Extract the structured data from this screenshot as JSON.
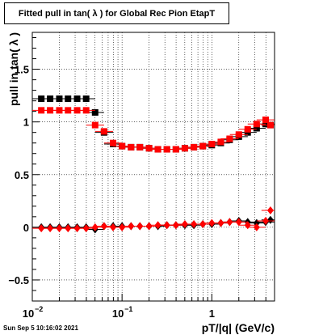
{
  "chart_data": {
    "type": "scatter",
    "title": "Fitted pull in tan( λ ) for Global Rec Pion EtapT",
    "xlabel": "pT/|q| (GeV/c)",
    "ylabel": "pull in tan( λ )",
    "xscale": "log",
    "xlim": [
      0.01,
      5.0
    ],
    "ylim": [
      -0.7,
      1.85
    ],
    "x_ticks": [
      {
        "value": 0.01,
        "label": "10",
        "exp": "−2"
      },
      {
        "value": 0.1,
        "label": "10",
        "exp": "−1"
      },
      {
        "value": 1,
        "label": "1",
        "exp": ""
      }
    ],
    "y_ticks": [
      {
        "value": -0.5,
        "label": "−0.5"
      },
      {
        "value": 0,
        "label": "0"
      },
      {
        "value": 0.5,
        "label": "0.5"
      },
      {
        "value": 1,
        "label": "1"
      },
      {
        "value": 1.5,
        "label": "1.5"
      }
    ],
    "grid": true,
    "series": [
      {
        "color": "#000000",
        "marker": "square",
        "points": [
          [
            0.0126,
            1.22
          ],
          [
            0.0158,
            1.22
          ],
          [
            0.02,
            1.22
          ],
          [
            0.025,
            1.22
          ],
          [
            0.0316,
            1.22
          ],
          [
            0.0398,
            1.22
          ],
          [
            0.0501,
            1.09
          ],
          [
            0.063,
            0.9
          ],
          [
            0.0794,
            0.79
          ],
          [
            0.1,
            0.77
          ],
          [
            0.126,
            0.76
          ],
          [
            0.158,
            0.76
          ],
          [
            0.2,
            0.75
          ],
          [
            0.251,
            0.74
          ],
          [
            0.316,
            0.74
          ],
          [
            0.398,
            0.74
          ],
          [
            0.501,
            0.75
          ],
          [
            0.631,
            0.76
          ],
          [
            0.794,
            0.77
          ],
          [
            1.0,
            0.78
          ],
          [
            1.26,
            0.8
          ],
          [
            1.58,
            0.83
          ],
          [
            2.0,
            0.86
          ],
          [
            2.51,
            0.9
          ],
          [
            3.16,
            0.94
          ],
          [
            3.98,
            0.98
          ],
          [
            4.5,
            0.97
          ]
        ]
      },
      {
        "color": "#ff0000",
        "marker": "square",
        "points": [
          [
            0.0126,
            1.11
          ],
          [
            0.0158,
            1.11
          ],
          [
            0.02,
            1.11
          ],
          [
            0.025,
            1.11
          ],
          [
            0.0316,
            1.11
          ],
          [
            0.0398,
            1.11
          ],
          [
            0.0501,
            0.97
          ],
          [
            0.063,
            0.91
          ],
          [
            0.0794,
            0.8
          ],
          [
            0.1,
            0.77
          ],
          [
            0.126,
            0.76
          ],
          [
            0.158,
            0.76
          ],
          [
            0.2,
            0.75
          ],
          [
            0.251,
            0.74
          ],
          [
            0.316,
            0.74
          ],
          [
            0.398,
            0.74
          ],
          [
            0.501,
            0.75
          ],
          [
            0.631,
            0.76
          ],
          [
            0.794,
            0.77
          ],
          [
            1.0,
            0.79
          ],
          [
            1.26,
            0.81
          ],
          [
            1.58,
            0.84
          ],
          [
            2.0,
            0.88
          ],
          [
            2.51,
            0.93
          ],
          [
            3.16,
            0.98
          ],
          [
            3.98,
            1.02
          ],
          [
            4.5,
            0.97
          ]
        ]
      },
      {
        "color": "#000000",
        "marker": "diamond",
        "points": [
          [
            0.0126,
            0.0
          ],
          [
            0.0158,
            0.0
          ],
          [
            0.02,
            0.0
          ],
          [
            0.025,
            0.0
          ],
          [
            0.0316,
            0.0
          ],
          [
            0.0398,
            0.0
          ],
          [
            0.0501,
            -0.02
          ],
          [
            0.063,
            0.01
          ],
          [
            0.0794,
            0.01
          ],
          [
            0.1,
            0.01
          ],
          [
            0.126,
            0.01
          ],
          [
            0.158,
            0.01
          ],
          [
            0.2,
            0.01
          ],
          [
            0.251,
            0.01
          ],
          [
            0.316,
            0.02
          ],
          [
            0.398,
            0.02
          ],
          [
            0.501,
            0.02
          ],
          [
            0.631,
            0.02
          ],
          [
            0.794,
            0.03
          ],
          [
            1.0,
            0.03
          ],
          [
            1.26,
            0.04
          ],
          [
            1.58,
            0.05
          ],
          [
            2.0,
            0.06
          ],
          [
            2.51,
            0.05
          ],
          [
            3.16,
            0.04
          ],
          [
            3.98,
            0.05
          ],
          [
            4.5,
            0.07
          ]
        ]
      },
      {
        "color": "#ff0000",
        "marker": "diamond",
        "points": [
          [
            0.0126,
            -0.01
          ],
          [
            0.0158,
            -0.01
          ],
          [
            0.02,
            -0.01
          ],
          [
            0.025,
            -0.01
          ],
          [
            0.0316,
            -0.01
          ],
          [
            0.0398,
            -0.01
          ],
          [
            0.0501,
            0.0
          ],
          [
            0.063,
            0.01
          ],
          [
            0.0794,
            0.0
          ],
          [
            0.1,
            0.0
          ],
          [
            0.126,
            0.01
          ],
          [
            0.158,
            0.01
          ],
          [
            0.2,
            0.01
          ],
          [
            0.251,
            0.02
          ],
          [
            0.316,
            0.02
          ],
          [
            0.398,
            0.02
          ],
          [
            0.501,
            0.03
          ],
          [
            0.631,
            0.03
          ],
          [
            0.794,
            0.03
          ],
          [
            1.0,
            0.04
          ],
          [
            1.26,
            0.04
          ],
          [
            1.58,
            0.05
          ],
          [
            2.0,
            0.05
          ],
          [
            2.51,
            0.02
          ],
          [
            3.16,
            0.0
          ],
          [
            3.98,
            0.06
          ],
          [
            4.5,
            0.16
          ]
        ]
      }
    ],
    "datestamp": "Sun Sep  5 10:16:02 2021"
  }
}
